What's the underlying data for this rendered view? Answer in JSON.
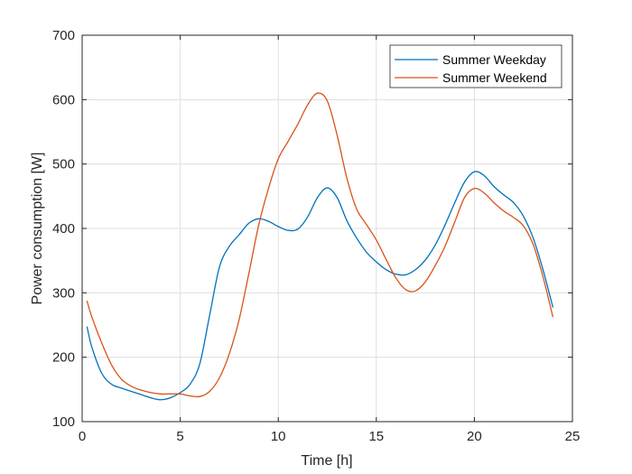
{
  "chart_data": {
    "type": "line",
    "xlabel": "Time [h]",
    "ylabel": "Power consumption [W]",
    "xlim": [
      0,
      25
    ],
    "ylim": [
      100,
      700
    ],
    "xticks": [
      0,
      5,
      10,
      15,
      20,
      25
    ],
    "yticks": [
      100,
      200,
      300,
      400,
      500,
      600,
      700
    ],
    "grid": true,
    "legend_position": "top-right",
    "series": [
      {
        "name": "Summer Weekday",
        "color": "#0072BD",
        "x": [
          0.25,
          0.5,
          1,
          1.5,
          2,
          2.5,
          3,
          3.5,
          4,
          4.5,
          5,
          5.5,
          6,
          6.5,
          7,
          7.5,
          8,
          8.5,
          9,
          9.5,
          10,
          10.5,
          11,
          11.5,
          12,
          12.5,
          13,
          13.5,
          14,
          14.5,
          15,
          15.5,
          16,
          16.5,
          17,
          17.5,
          18,
          18.5,
          19,
          19.5,
          20,
          20.5,
          21,
          21.5,
          22,
          22.5,
          23,
          23.5,
          24
        ],
        "y": [
          247,
          215,
          175,
          158,
          152,
          147,
          142,
          137,
          134,
          137,
          145,
          158,
          190,
          265,
          340,
          372,
          390,
          408,
          415,
          411,
          403,
          397,
          399,
          418,
          448,
          463,
          448,
          412,
          385,
          363,
          348,
          336,
          329,
          328,
          336,
          351,
          374,
          405,
          440,
          472,
          488,
          482,
          465,
          452,
          440,
          419,
          385,
          336,
          278
        ]
      },
      {
        "name": "Summer Weekend",
        "color": "#D95319",
        "x": [
          0.25,
          0.5,
          1,
          1.5,
          2,
          2.5,
          3,
          3.5,
          4,
          4.5,
          5,
          5.5,
          6,
          6.5,
          7,
          7.5,
          8,
          8.5,
          9,
          9.5,
          10,
          10.5,
          11,
          11.5,
          12,
          12.5,
          13,
          13.5,
          14,
          14.5,
          15,
          15.5,
          16,
          16.5,
          17,
          17.5,
          18,
          18.5,
          19,
          19.5,
          20,
          20.5,
          21,
          21.5,
          22,
          22.5,
          23,
          23.5,
          24
        ],
        "y": [
          287,
          262,
          222,
          188,
          166,
          155,
          149,
          145,
          143,
          143,
          143,
          140,
          139,
          147,
          168,
          205,
          258,
          330,
          405,
          462,
          508,
          535,
          562,
          592,
          610,
          598,
          545,
          478,
          430,
          406,
          382,
          352,
          323,
          305,
          303,
          317,
          342,
          372,
          410,
          448,
          462,
          455,
          440,
          427,
          417,
          404,
          375,
          325,
          263
        ]
      }
    ]
  }
}
